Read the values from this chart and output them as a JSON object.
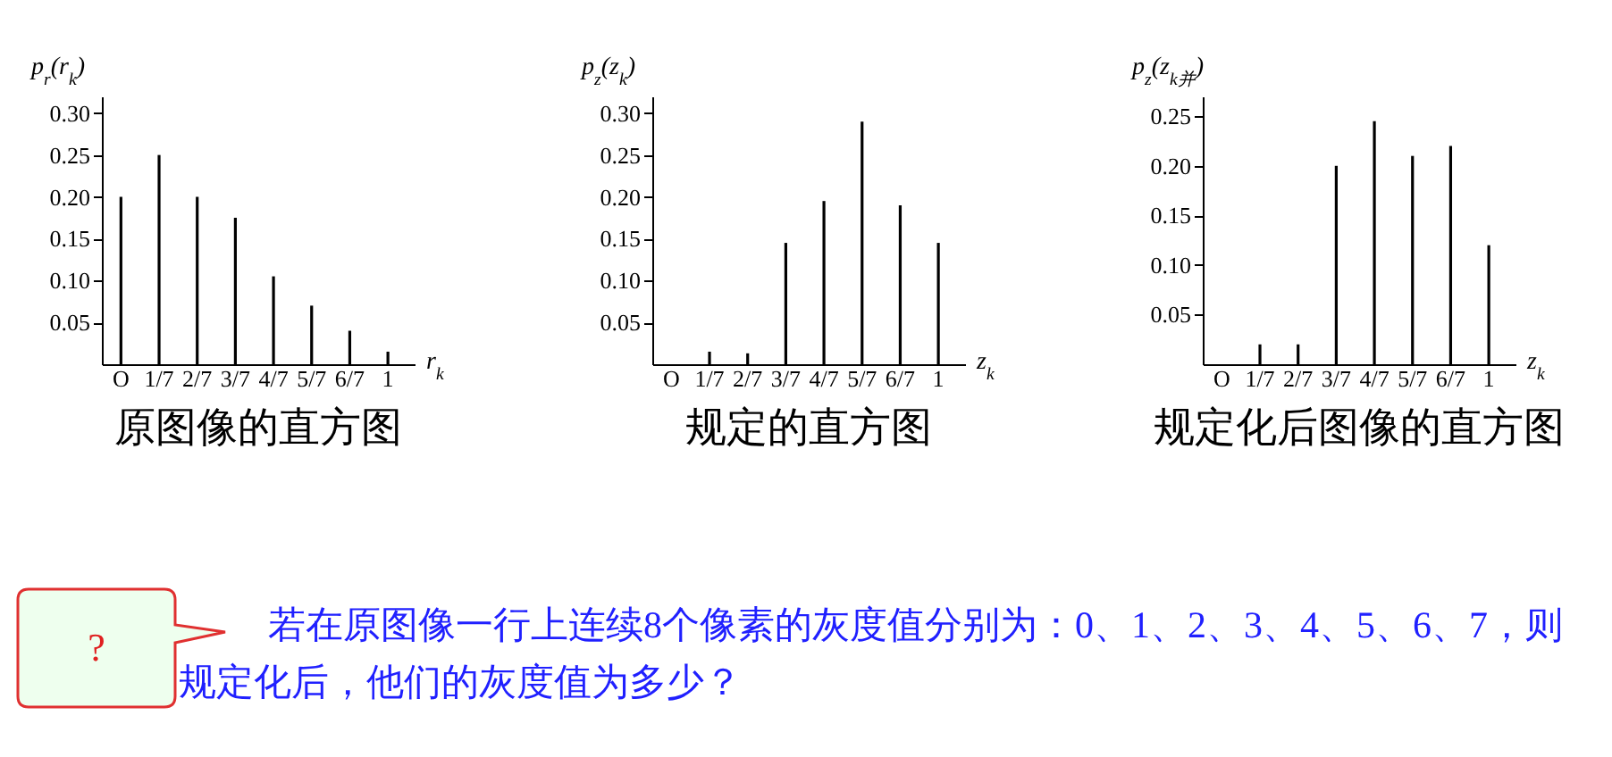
{
  "chart_data": [
    {
      "type": "bar",
      "title": "原图像的直方图",
      "xlabel": "r$_{k}$",
      "ylabel": "p$_{r}$(r$_{k}$)",
      "categories": [
        "O",
        "1/7",
        "2/7",
        "3/7",
        "4/7",
        "5/7",
        "6/7",
        "1"
      ],
      "series": [
        {
          "color": "#000000",
          "values": [
            0.2,
            0.25,
            0.2,
            0.175,
            0.105,
            0.07,
            0.04,
            0.015
          ]
        }
      ],
      "ylim": [
        0,
        0.32
      ],
      "yticks": [
        0.05,
        {
          "value": 0.1,
          "label": "0.10"
        },
        0.15,
        {
          "value": 0.2,
          "label": "0.20"
        },
        0.25,
        {
          "value": 0.3,
          "label": "0.30"
        }
      ],
      "grid": false
    },
    {
      "type": "bar",
      "title": "规定的直方图",
      "xlabel": "z$_{k}$",
      "ylabel": "p$_{z}$(z$_{k}$)",
      "categories": [
        "O",
        "1/7",
        "2/7",
        "3/7",
        "4/7",
        "5/7",
        "6/7",
        "1"
      ],
      "series": [
        {
          "color": "#000000",
          "values": [
            null,
            0.015,
            0.013,
            0.145,
            0.195,
            0.29,
            0.19,
            0.145
          ]
        }
      ],
      "ylim": [
        0,
        0.32
      ],
      "yticks": [
        0.05,
        {
          "value": 0.1,
          "label": "0.10"
        },
        0.15,
        {
          "value": 0.2,
          "label": "0.20"
        },
        0.25,
        {
          "value": 0.3,
          "label": "0.30"
        }
      ],
      "grid": false
    },
    {
      "type": "bar",
      "title": "规定化后图像的直方图",
      "xlabel": "z$_{k}$",
      "ylabel": "p$_{z}$(z$_{k并}$)",
      "categories": [
        "O",
        "1/7",
        "2/7",
        "3/7",
        "4/7",
        "5/7",
        "6/7",
        "1"
      ],
      "series": [
        {
          "color": "#000000",
          "values": [
            null,
            0.02,
            0.02,
            0.2,
            0.245,
            0.21,
            0.22,
            0.12
          ]
        }
      ],
      "ylim": [
        0,
        0.27
      ],
      "yticks": [
        0.05,
        {
          "value": 0.1,
          "label": "0.10"
        },
        0.15,
        {
          "value": 0.2,
          "label": "0.20"
        },
        0.25
      ],
      "grid": false,
      "annotations": [
        "?",
        "若在原图像一行上连续8个像素的灰度值分别为：0、1、2、3、4、5、6、7，则规定化后，他们的灰度值为多少？"
      ]
    }
  ]
}
